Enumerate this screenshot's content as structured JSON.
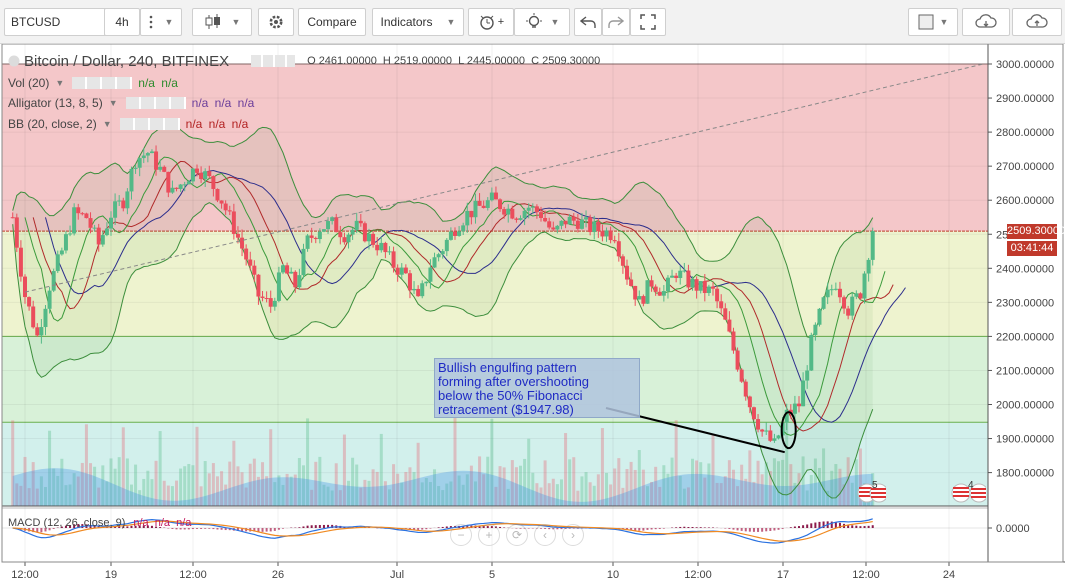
{
  "toolbar": {
    "symbol": "BTCUSD",
    "interval": "4h",
    "compare_label": "Compare",
    "indicators_label": "Indicators"
  },
  "header": {
    "title": "Bitcoin / Dollar, 240, BITFINEX",
    "ohlc": "O 2461.00000  H 2519.00000  L 2445.00000  C 2509.30000"
  },
  "legends": {
    "vol": {
      "label": "Vol (20)",
      "values": "n/a n/a"
    },
    "alligator": {
      "label": "Alligator (13, 8, 5)",
      "values": "n/a n/a n/a"
    },
    "bb": {
      "label": "BB (20, close, 2)",
      "values": "n/a n/a n/a"
    },
    "macd": {
      "label": "MACD (12, 26, close, 9)",
      "values": "n/a n/a n/a"
    }
  },
  "price_axis": {
    "ticks": [
      "3000.00000",
      "2900.00000",
      "2800.00000",
      "2700.00000",
      "2600.00000",
      "2500.00000",
      "2400.00000",
      "2300.00000",
      "2200.00000",
      "2100.00000",
      "2000.00000",
      "1900.00000",
      "1800.00000"
    ],
    "last_price_label": "2509.30000",
    "countdown_label": "03:41:44"
  },
  "macd_axis": {
    "tick": "0.0000"
  },
  "time_axis": {
    "ticks": [
      "12:00",
      "19",
      "12:00",
      "26",
      "Jul",
      "5",
      "10",
      "12:00",
      "17",
      "12:00",
      "24"
    ]
  },
  "annotation": {
    "lines": [
      "Bullish engulfing pattern",
      "forming after overshooting",
      "below the  50% Fibonacci",
      "retracement ($1947.98)"
    ]
  },
  "events": {
    "badge_right": "5",
    "badge_far": "4"
  },
  "colors": {
    "up": "#53b987",
    "down": "#eb4d5c",
    "fib_top": "#f4c7c9",
    "fib_mid": "#eef3cf",
    "fib_low": "#d8f1d8",
    "fib_bottom": "#d2f0ec",
    "bb_line": "#3c8e3c",
    "macd": "#2b72e0",
    "signal": "#f08a22",
    "annotation_bg": "#b0c4de",
    "annotation_text": "#1f2ac4"
  },
  "chart_data": {
    "type": "candlestick",
    "title": "Bitcoin / Dollar, 240, BITFINEX",
    "ylim": [
      1700,
      3040
    ],
    "y_ticks": [
      3000,
      2900,
      2800,
      2700,
      2600,
      2500,
      2400,
      2300,
      2200,
      2100,
      2000,
      1900,
      1800
    ],
    "last_price": 2509.3,
    "fibonacci_levels": [
      3000,
      2509.3,
      2200,
      1947.98
    ],
    "trendline": {
      "from": [
        "Jun 15 12:00",
        2330
      ],
      "to": [
        "Jul 24 12:00",
        3000
      ],
      "style": "dashed"
    },
    "annotated_point": {
      "label": "Bullish engulfing pattern",
      "value": 1860
    },
    "price_path": [
      [
        "Jun 15 00:00",
        2550
      ],
      [
        "Jun 15 12:00",
        2320
      ],
      [
        "Jun 16 00:00",
        2200
      ],
      [
        "Jun 16 12:00",
        2350
      ],
      [
        "Jun 17 00:00",
        2450
      ],
      [
        "Jun 17 12:00",
        2560
      ],
      [
        "Jun 18 00:00",
        2550
      ],
      [
        "Jun 18 12:00",
        2470
      ],
      [
        "Jun 19 00:00",
        2560
      ],
      [
        "Jun 19 12:00",
        2600
      ],
      [
        "Jun 20 00:00",
        2720
      ],
      [
        "Jun 20 12:00",
        2740
      ],
      [
        "Jun 21 00:00",
        2690
      ],
      [
        "Jun 21 12:00",
        2620
      ],
      [
        "Jun 22 00:00",
        2660
      ],
      [
        "Jun 22 12:00",
        2700
      ],
      [
        "Jun 23 00:00",
        2660
      ],
      [
        "Jun 23 12:00",
        2600
      ],
      [
        "Jun 24 00:00",
        2520
      ],
      [
        "Jun 24 12:00",
        2430
      ],
      [
        "Jun 25 00:00",
        2320
      ],
      [
        "Jun 25 12:00",
        2290
      ],
      [
        "Jun 26 00:00",
        2400
      ],
      [
        "Jun 26 12:00",
        2350
      ],
      [
        "Jun 27 00:00",
        2480
      ],
      [
        "Jun 27 12:00",
        2520
      ],
      [
        "Jun 28 00:00",
        2530
      ],
      [
        "Jun 28 12:00",
        2500
      ],
      [
        "Jun 29 00:00",
        2520
      ],
      [
        "Jun 29 12:00",
        2490
      ],
      [
        "Jun 30 00:00",
        2460
      ],
      [
        "Jun 30 12:00",
        2410
      ],
      [
        "Jul 1 00:00",
        2380
      ],
      [
        "Jul 1 12:00",
        2300
      ],
      [
        "Jul 2 00:00",
        2410
      ],
      [
        "Jul 2 12:00",
        2460
      ],
      [
        "Jul 3 00:00",
        2520
      ],
      [
        "Jul 3 12:00",
        2560
      ],
      [
        "Jul 4 00:00",
        2580
      ],
      [
        "Jul 4 12:00",
        2600
      ],
      [
        "Jul 5 00:00",
        2580
      ],
      [
        "Jul 5 12:00",
        2560
      ],
      [
        "Jul 6 00:00",
        2580
      ],
      [
        "Jul 6 12:00",
        2560
      ],
      [
        "Jul 7 00:00",
        2500
      ],
      [
        "Jul 7 12:00",
        2540
      ],
      [
        "Jul 8 00:00",
        2540
      ],
      [
        "Jul 8 12:00",
        2520
      ],
      [
        "Jul 9 00:00",
        2510
      ],
      [
        "Jul 9 12:00",
        2500
      ],
      [
        "Jul 10 00:00",
        2380
      ],
      [
        "Jul 10 12:00",
        2300
      ],
      [
        "Jul 11 00:00",
        2360
      ],
      [
        "Jul 11 12:00",
        2330
      ],
      [
        "Jul 12 00:00",
        2390
      ],
      [
        "Jul 12 12:00",
        2360
      ],
      [
        "Jul 13 00:00",
        2340
      ],
      [
        "Jul 13 12:00",
        2330
      ],
      [
        "Jul 14 00:00",
        2240
      ],
      [
        "Jul 14 12:00",
        2120
      ],
      [
        "Jul 15 00:00",
        2000
      ],
      [
        "Jul 15 12:00",
        1920
      ],
      [
        "Jul 16 00:00",
        1880
      ],
      [
        "Jul 16 12:00",
        1970
      ],
      [
        "Jul 17 00:00",
        2000
      ],
      [
        "Jul 17 12:00",
        2180
      ],
      [
        "Jul 18 00:00",
        2300
      ],
      [
        "Jul 18 12:00",
        2360
      ],
      [
        "Jul 19 00:00",
        2280
      ],
      [
        "Jul 19 12:00",
        2330
      ],
      [
        "Jul 20 00:00",
        2509.3
      ]
    ],
    "series": [
      {
        "name": "Vol (20)"
      },
      {
        "name": "Alligator (13, 8, 5)"
      },
      {
        "name": "BB (20, close, 2)"
      },
      {
        "name": "MACD (12, 26, close, 9)"
      }
    ],
    "grid": true
  }
}
